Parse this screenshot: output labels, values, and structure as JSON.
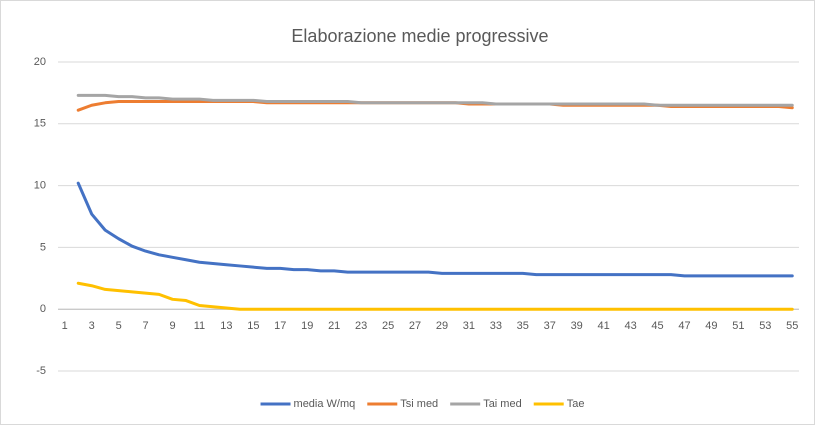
{
  "chart_data": {
    "type": "line",
    "title": "Elaborazione medie progressive",
    "categories": [
      1,
      null,
      3,
      null,
      5,
      null,
      7,
      null,
      9,
      null,
      11,
      null,
      13,
      null,
      15,
      null,
      17,
      null,
      19,
      null,
      21,
      null,
      23,
      null,
      25,
      null,
      27,
      null,
      29,
      null,
      31,
      null,
      33,
      null,
      35,
      null,
      37,
      null,
      39,
      null,
      41,
      null,
      43,
      null,
      45,
      null,
      47,
      null,
      49,
      null,
      51,
      null,
      53,
      null,
      55
    ],
    "series": [
      {
        "name": "media W/mq",
        "color": "#4472c4",
        "values": [
          null,
          10.2,
          7.7,
          6.4,
          5.7,
          5.1,
          4.7,
          4.4,
          4.2,
          4.0,
          3.8,
          3.7,
          3.6,
          3.5,
          3.4,
          3.3,
          3.3,
          3.2,
          3.2,
          3.1,
          3.1,
          3.0,
          3.0,
          3.0,
          3.0,
          3.0,
          3.0,
          3.0,
          2.9,
          2.9,
          2.9,
          2.9,
          2.9,
          2.9,
          2.9,
          2.8,
          2.8,
          2.8,
          2.8,
          2.8,
          2.8,
          2.8,
          2.8,
          2.8,
          2.8,
          2.8,
          2.7,
          2.7,
          2.7,
          2.7,
          2.7,
          2.7,
          2.7,
          2.7,
          2.7
        ]
      },
      {
        "name": "Tsi med",
        "color": "#ed7d31",
        "values": [
          null,
          16.1,
          16.5,
          16.7,
          16.8,
          16.8,
          16.8,
          16.8,
          16.8,
          16.8,
          16.8,
          16.8,
          16.8,
          16.8,
          16.8,
          16.7,
          16.7,
          16.7,
          16.7,
          16.7,
          16.7,
          16.7,
          16.7,
          16.7,
          16.7,
          16.7,
          16.7,
          16.7,
          16.7,
          16.7,
          16.6,
          16.6,
          16.6,
          16.6,
          16.6,
          16.6,
          16.6,
          16.5,
          16.5,
          16.5,
          16.5,
          16.5,
          16.5,
          16.5,
          16.5,
          16.4,
          16.4,
          16.4,
          16.4,
          16.4,
          16.4,
          16.4,
          16.4,
          16.4,
          16.3
        ]
      },
      {
        "name": "Tai med",
        "color": "#a5a5a5",
        "values": [
          null,
          17.3,
          17.3,
          17.3,
          17.2,
          17.2,
          17.1,
          17.1,
          17.0,
          17.0,
          17.0,
          16.9,
          16.9,
          16.9,
          16.9,
          16.8,
          16.8,
          16.8,
          16.8,
          16.8,
          16.8,
          16.8,
          16.7,
          16.7,
          16.7,
          16.7,
          16.7,
          16.7,
          16.7,
          16.7,
          16.7,
          16.7,
          16.6,
          16.6,
          16.6,
          16.6,
          16.6,
          16.6,
          16.6,
          16.6,
          16.6,
          16.6,
          16.6,
          16.6,
          16.5,
          16.5,
          16.5,
          16.5,
          16.5,
          16.5,
          16.5,
          16.5,
          16.5,
          16.5,
          16.5
        ]
      },
      {
        "name": "Tae",
        "color": "#ffc000",
        "values": [
          null,
          2.1,
          1.9,
          1.6,
          1.5,
          1.4,
          1.3,
          1.2,
          0.8,
          0.7,
          0.3,
          0.2,
          0.1,
          0,
          0,
          0,
          0,
          0,
          0,
          0,
          0,
          0,
          0,
          0,
          0,
          0,
          0,
          0,
          0,
          0,
          0,
          0,
          0,
          0,
          0,
          0,
          0,
          0,
          0,
          0,
          0,
          0,
          0,
          0,
          0,
          0,
          0,
          0,
          0,
          0,
          0,
          0,
          0,
          0,
          0
        ]
      }
    ],
    "ylim": [
      -5,
      20
    ],
    "yticks": [
      -5,
      0,
      5,
      10,
      15,
      20
    ],
    "grid": true,
    "legend": "bottom"
  }
}
